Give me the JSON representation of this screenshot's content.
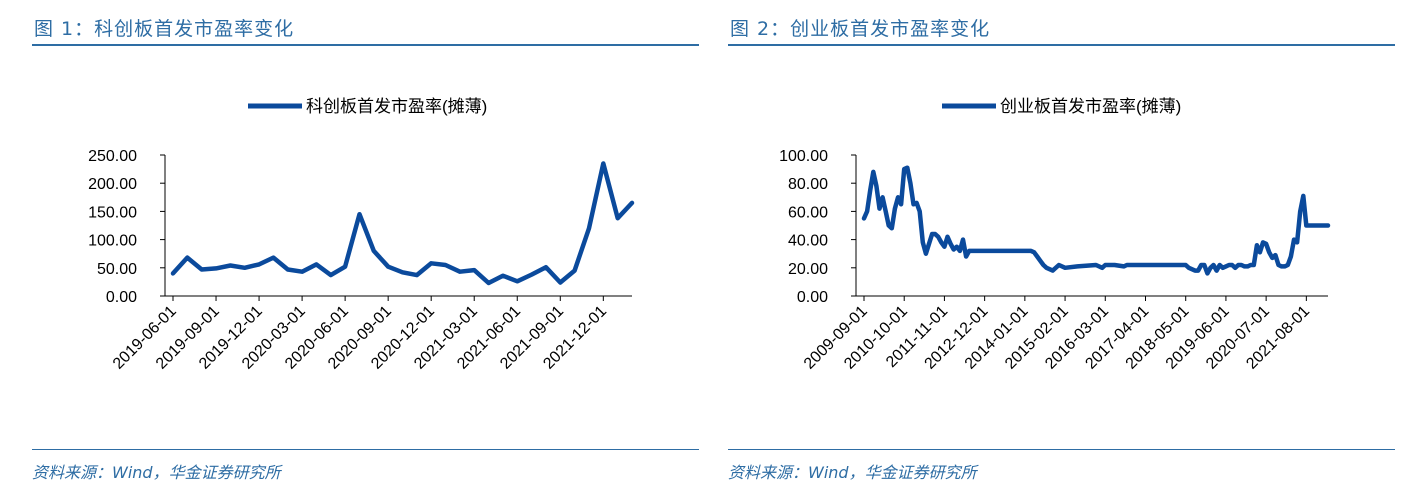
{
  "page": {
    "figures": [
      {
        "title": "图 1：科创板首发市盈率变化",
        "source": "资料来源：Wind，华金证券研究所"
      },
      {
        "title": "图 2：创业板首发市盈率变化",
        "source": "资料来源：Wind，华金证券研究所"
      }
    ]
  },
  "chart_data": [
    {
      "type": "line",
      "title": "",
      "xlabel": "",
      "ylabel": "",
      "ylim": [
        0,
        250
      ],
      "yticks": [
        "0.00",
        "50.00",
        "100.00",
        "150.00",
        "200.00",
        "250.00"
      ],
      "xticks": [
        "2019-06-01",
        "2019-09-01",
        "2019-12-01",
        "2020-03-01",
        "2020-06-01",
        "2020-09-01",
        "2020-12-01",
        "2021-03-01",
        "2021-06-01",
        "2021-09-01",
        "2021-12-01"
      ],
      "legend": "top-center",
      "grid": false,
      "line_color": "#0B4A9C",
      "series": [
        {
          "name": "科创板首发市盈率(摊薄)",
          "x": [
            "2019-06",
            "2019-07",
            "2019-08",
            "2019-09",
            "2019-10",
            "2019-11",
            "2019-12",
            "2020-01",
            "2020-02",
            "2020-03",
            "2020-04",
            "2020-05",
            "2020-06",
            "2020-07",
            "2020-08",
            "2020-09",
            "2020-10",
            "2020-11",
            "2020-12",
            "2021-01",
            "2021-02",
            "2021-03",
            "2021-04",
            "2021-05",
            "2021-06",
            "2021-07",
            "2021-08",
            "2021-09",
            "2021-10",
            "2021-11",
            "2021-12",
            "2022-01",
            "2022-02"
          ],
          "values": [
            40,
            68,
            47,
            49,
            54,
            50,
            56,
            68,
            47,
            43,
            56,
            37,
            52,
            145,
            80,
            52,
            42,
            37,
            58,
            55,
            43,
            46,
            23,
            36,
            26,
            38,
            51,
            24,
            45,
            120,
            235,
            138,
            165
          ]
        }
      ]
    },
    {
      "type": "line",
      "title": "",
      "xlabel": "",
      "ylabel": "",
      "ylim": [
        0,
        100
      ],
      "yticks": [
        "0.00",
        "20.00",
        "40.00",
        "60.00",
        "80.00",
        "100.00"
      ],
      "xticks": [
        "2009-09-01",
        "2010-10-01",
        "2011-11-01",
        "2012-12-01",
        "2014-01-01",
        "2015-02-01",
        "2016-03-01",
        "2017-04-01",
        "2018-05-01",
        "2019-06-01",
        "2020-07-01",
        "2021-08-01"
      ],
      "legend": "top-center",
      "grid": false,
      "line_color": "#0B4A9C",
      "series": [
        {
          "name": "创业板首发市盈率(摊薄)",
          "x": [
            "2009-09",
            "2009-10",
            "2009-11",
            "2009-12",
            "2010-01",
            "2010-02",
            "2010-03",
            "2010-04",
            "2010-05",
            "2010-06",
            "2010-07",
            "2010-08",
            "2010-09",
            "2010-10",
            "2010-11",
            "2010-12",
            "2011-01",
            "2011-02",
            "2011-03",
            "2011-04",
            "2011-05",
            "2011-06",
            "2011-07",
            "2011-08",
            "2011-09",
            "2011-10",
            "2011-11",
            "2011-12",
            "2012-01",
            "2012-02",
            "2012-03",
            "2012-04",
            "2012-05",
            "2012-06",
            "2012-07",
            "2012-08",
            "2012-09",
            "2012-10",
            "2012-11",
            "2014-01",
            "2014-02",
            "2014-03",
            "2014-04",
            "2014-05",
            "2014-06",
            "2014-07",
            "2014-08",
            "2014-10",
            "2014-12",
            "2015-02",
            "2015-06",
            "2015-12",
            "2016-02",
            "2016-03",
            "2016-06",
            "2016-09",
            "2016-10",
            "2017-01",
            "2017-04",
            "2017-10",
            "2018-05",
            "2018-06",
            "2018-08",
            "2018-09",
            "2018-10",
            "2018-11",
            "2018-12",
            "2019-01",
            "2019-02",
            "2019-03",
            "2019-04",
            "2019-05",
            "2019-06",
            "2019-07",
            "2019-08",
            "2019-09",
            "2019-10",
            "2019-11",
            "2019-12",
            "2020-01",
            "2020-02",
            "2020-03",
            "2020-04",
            "2020-05",
            "2020-06",
            "2020-07",
            "2020-08",
            "2020-09",
            "2020-10",
            "2020-11",
            "2020-12",
            "2021-01",
            "2021-02",
            "2021-03",
            "2021-04",
            "2021-05",
            "2021-06",
            "2021-07",
            "2021-08",
            "2021-09",
            "2021-10",
            "2021-11",
            "2021-12",
            "2022-01",
            "2022-02",
            "2022-03"
          ],
          "values": [
            55,
            60,
            75,
            88,
            78,
            62,
            70,
            60,
            50,
            48,
            62,
            70,
            65,
            90,
            91,
            80,
            65,
            66,
            60,
            38,
            30,
            37,
            44,
            44,
            42,
            38,
            35,
            42,
            37,
            33,
            35,
            32,
            40,
            28,
            32,
            32,
            32,
            32,
            32,
            32,
            32,
            32,
            31,
            28,
            25,
            22,
            20,
            18,
            22,
            20,
            21,
            22,
            20,
            22,
            22,
            21,
            22,
            22,
            22,
            22,
            22,
            20,
            18,
            18,
            22,
            22,
            16,
            20,
            22,
            18,
            22,
            20,
            21,
            22,
            22,
            20,
            22,
            22,
            21,
            21,
            22,
            22,
            36,
            31,
            38,
            37,
            31,
            27,
            29,
            22,
            21,
            21,
            22,
            28,
            40,
            38,
            60,
            71,
            50,
            50,
            50,
            50,
            50,
            50,
            50,
            50
          ]
        }
      ]
    }
  ]
}
